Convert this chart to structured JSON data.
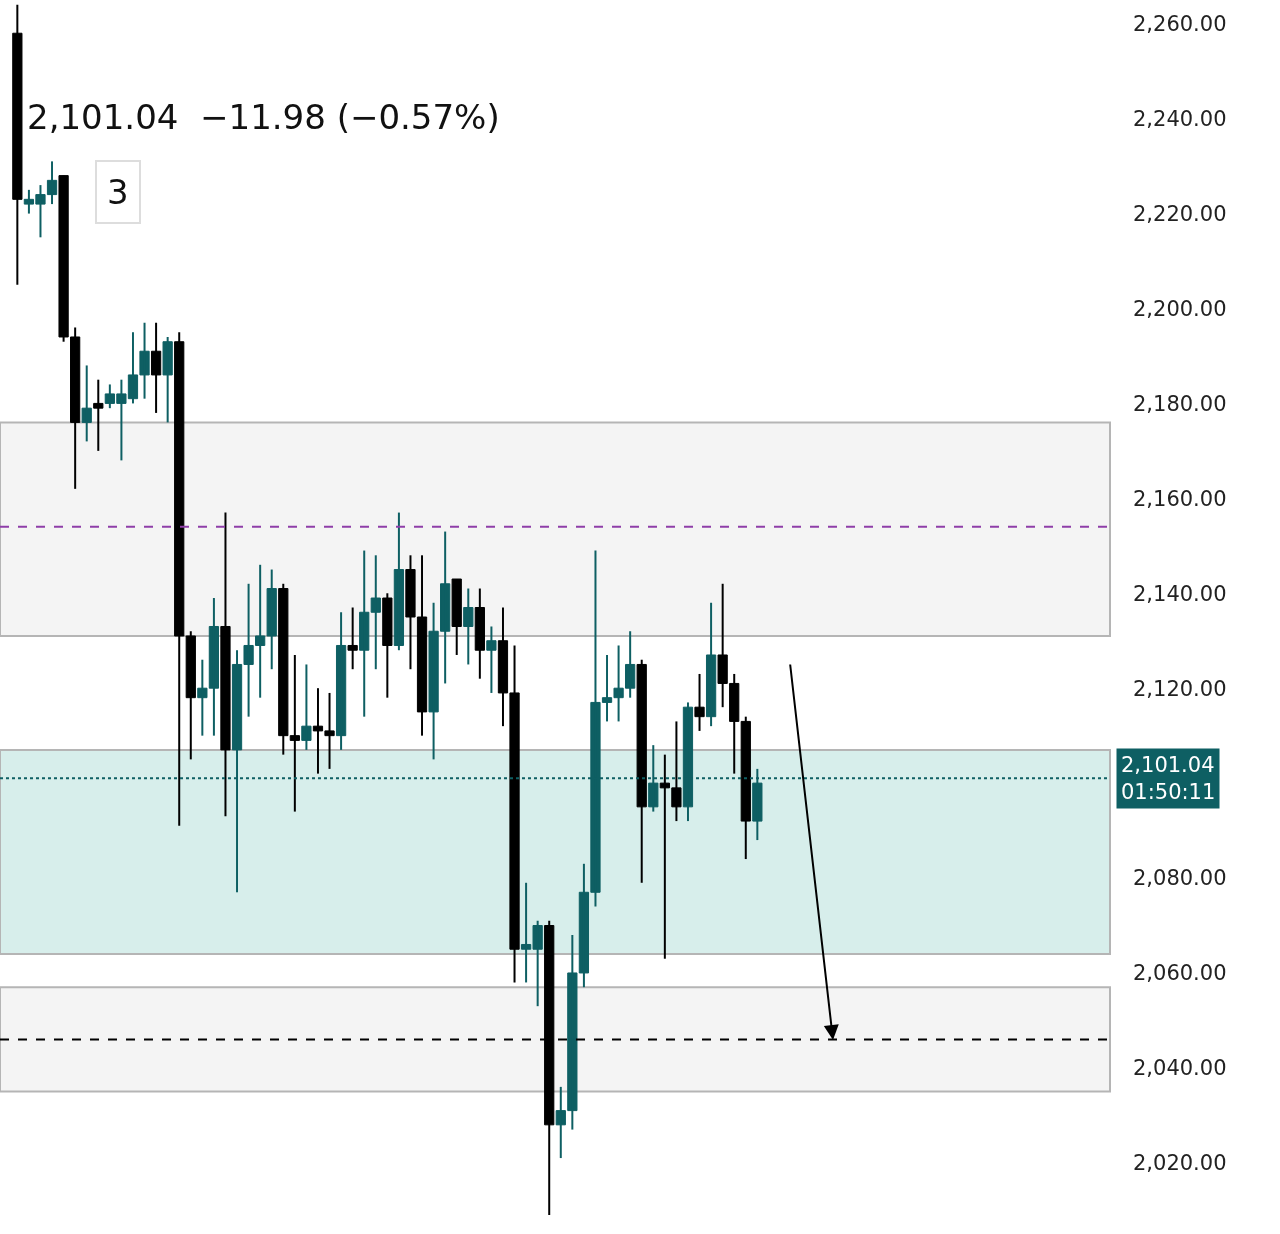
{
  "chart_data": {
    "type": "candlestick",
    "categories": [
      null,
      null,
      null,
      null,
      null,
      null,
      null,
      null,
      null,
      null,
      null,
      null,
      null,
      null,
      null,
      null,
      null,
      null,
      null,
      null,
      null,
      null,
      null,
      null,
      null,
      null,
      null,
      null,
      null,
      null,
      null,
      null,
      null,
      null,
      null,
      null,
      null,
      null,
      null,
      null,
      null,
      null,
      null,
      null,
      null,
      null,
      null,
      null,
      null,
      null,
      null,
      null,
      null,
      null,
      null,
      null,
      null,
      null,
      null,
      null,
      null,
      null,
      null,
      null,
      null,
      null,
      null,
      null,
      null,
      null,
      null,
      null,
      null,
      null,
      null,
      null,
      null,
      null,
      null,
      null,
      null,
      null,
      null,
      null,
      null,
      null,
      null,
      null,
      null,
      null,
      null,
      null,
      null,
      null,
      null,
      null
    ],
    "ohlc": [
      [
        2258,
        2264,
        2205,
        2223
      ],
      [
        2222,
        2225,
        2220,
        2223
      ],
      [
        2222,
        2226,
        2215,
        2224
      ],
      [
        2224,
        2231,
        2222,
        2227
      ],
      [
        2228,
        2228,
        2193,
        2194
      ],
      [
        2194,
        2196,
        2162,
        2176
      ],
      [
        2176,
        2188,
        2172,
        2179
      ],
      [
        2180,
        2185,
        2170,
        2179
      ],
      [
        2180,
        2184,
        2179,
        2182
      ],
      [
        2180,
        2185,
        2168,
        2182
      ],
      [
        2181,
        2195,
        2180,
        2186
      ],
      [
        2186,
        2197,
        2181,
        2191
      ],
      [
        2191,
        2197,
        2178,
        2186
      ],
      [
        2186,
        2194,
        2176,
        2193
      ],
      [
        2193,
        2195,
        2091,
        2131
      ],
      [
        2131,
        2132,
        2105,
        2118
      ],
      [
        2118,
        2126,
        2110,
        2120
      ],
      [
        2120,
        2139,
        2110,
        2133
      ],
      [
        2133,
        2157,
        2093,
        2107
      ],
      [
        2107,
        2128,
        2077,
        2125
      ],
      [
        2125,
        2142,
        2114,
        2129
      ],
      [
        2129,
        2146,
        2118,
        2131
      ],
      [
        2131,
        2145,
        2124,
        2141
      ],
      [
        2141,
        2142,
        2106,
        2110
      ],
      [
        2110,
        2127,
        2094,
        2109
      ],
      [
        2109,
        2125,
        2107,
        2112
      ],
      [
        2112,
        2120,
        2102,
        2111
      ],
      [
        2111,
        2119,
        2103,
        2110
      ],
      [
        2110,
        2136,
        2107,
        2129
      ],
      [
        2129,
        2137,
        2124,
        2128
      ],
      [
        2128,
        2149,
        2114,
        2136
      ],
      [
        2136,
        2148,
        2124,
        2139
      ],
      [
        2139,
        2140,
        2118,
        2129
      ],
      [
        2129,
        2157,
        2128,
        2145
      ],
      [
        2145,
        2148,
        2124,
        2135
      ],
      [
        2135,
        2148,
        2110,
        2115
      ],
      [
        2115,
        2138,
        2105,
        2132
      ],
      [
        2132,
        2153,
        2121,
        2142
      ],
      [
        2143,
        2143,
        2127,
        2133
      ],
      [
        2133,
        2141,
        2125,
        2137
      ],
      [
        2137,
        2141,
        2122,
        2128
      ],
      [
        2128,
        2133,
        2119,
        2130
      ],
      [
        2130,
        2137,
        2112,
        2119
      ],
      [
        2119,
        2129,
        2058,
        2065
      ],
      [
        2065,
        2079,
        2058,
        2066
      ],
      [
        2065,
        2071,
        2053,
        2070
      ],
      [
        2070,
        2071,
        2009,
        2028
      ],
      [
        2028,
        2036,
        2021,
        2031
      ],
      [
        2031,
        2068,
        2027,
        2060
      ],
      [
        2060,
        2083,
        2057,
        2077
      ],
      [
        2077,
        2149,
        2074,
        2117
      ],
      [
        2117,
        2127,
        2113,
        2118
      ],
      [
        2118,
        2129,
        2113,
        2120
      ],
      [
        2120,
        2132,
        2118,
        2125
      ],
      [
        2125,
        2126,
        2079,
        2095
      ],
      [
        2095,
        2108,
        2094,
        2100
      ],
      [
        2100,
        2106,
        2063,
        2099
      ],
      [
        2099,
        2113,
        2092,
        2095
      ],
      [
        2095,
        2117,
        2092,
        2116
      ],
      [
        2116,
        2123,
        2111,
        2114
      ],
      [
        2114,
        2138,
        2112,
        2127
      ],
      [
        2127,
        2142,
        2116,
        2121
      ],
      [
        2121,
        2123,
        2102,
        2113
      ],
      [
        2113,
        2114,
        2084,
        2092
      ],
      [
        2092,
        2103,
        2088,
        2100
      ],
      null,
      null,
      null,
      null,
      null,
      null,
      null,
      null,
      null,
      null,
      null,
      null,
      null,
      null,
      null,
      null,
      null,
      null,
      null,
      null,
      null,
      null,
      null,
      null,
      null,
      null,
      null,
      null,
      null,
      null,
      null
    ],
    "ylim": [
      2005,
      2265
    ],
    "yticks": [
      {
        "value": 2020,
        "label": "2,020.00"
      },
      {
        "value": 2040,
        "label": "2,040.00"
      },
      {
        "value": 2060,
        "label": "2,060.00"
      },
      {
        "value": 2080,
        "label": "2,080.00"
      },
      {
        "value": 2120,
        "label": "2,120.00"
      },
      {
        "value": 2140,
        "label": "2,140.00"
      },
      {
        "value": 2160,
        "label": "2,160.00"
      },
      {
        "value": 2180,
        "label": "2,180.00"
      },
      {
        "value": 2200,
        "label": "2,200.00"
      },
      {
        "value": 2220,
        "label": "2,220.00"
      },
      {
        "value": 2240,
        "label": "2,240.00"
      },
      {
        "value": 2260,
        "label": "2,260.00"
      }
    ],
    "bands": [
      {
        "axis": "y",
        "from": 2131,
        "to": 2176,
        "color": "#f4f4f4"
      },
      {
        "axis": "y",
        "from": 2035,
        "to": 2057,
        "color": "#f4f4f4"
      },
      {
        "axis": "y",
        "from": 2064,
        "to": 2107,
        "color": "#d7eeeb"
      }
    ],
    "ref_lines": [
      {
        "axis": "y",
        "value": 2154,
        "color": "#8e3ea8",
        "line_style": "dashed"
      },
      {
        "axis": "y",
        "value": 2046,
        "color": "#000000",
        "line_style": "dashed"
      },
      {
        "axis": "y",
        "value": 2101.04,
        "label": "2,101.04\n01:50:11",
        "color": "#0e5f63",
        "line_style": "dotted"
      }
    ],
    "annotations": [
      "2,101.04  −11.98 (−0.57%)",
      "3"
    ],
    "tick_labels": "y"
  }
}
